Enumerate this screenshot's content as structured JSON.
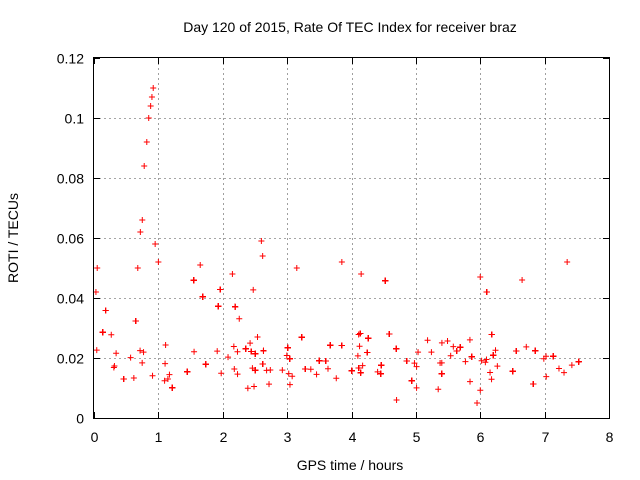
{
  "chart_data": {
    "type": "scatter",
    "title": "Day 120 of 2015, Rate Of TEC Index for receiver braz",
    "xlabel": "GPS time / hours",
    "ylabel": "ROTI / TECUs",
    "xlim": [
      0,
      8
    ],
    "ylim": [
      0,
      0.12
    ],
    "xticks": [
      0,
      1,
      2,
      3,
      4,
      5,
      6,
      7,
      8
    ],
    "xtick_labels": [
      "0",
      "1",
      "2",
      "3",
      "4",
      "5",
      "6",
      "7",
      "8"
    ],
    "yticks": [
      0,
      0.02,
      0.04,
      0.06,
      0.08,
      0.1,
      0.12
    ],
    "ytick_labels": [
      "0",
      "0.02",
      "0.04",
      "0.06",
      "0.08",
      "0.1",
      "0.12"
    ],
    "grid": true,
    "marker": "plus",
    "color": "#ff0000",
    "series": [
      {
        "name": "ROTI",
        "x_range": [
          0.0,
          7.55
        ],
        "baseline_band": [
          0.008,
          0.03
        ],
        "notable_points": [
          {
            "x": 0.78,
            "y": 0.084
          },
          {
            "x": 0.82,
            "y": 0.092
          },
          {
            "x": 0.85,
            "y": 0.1
          },
          {
            "x": 0.88,
            "y": 0.104
          },
          {
            "x": 0.9,
            "y": 0.107
          },
          {
            "x": 0.92,
            "y": 0.11
          },
          {
            "x": 0.75,
            "y": 0.066
          },
          {
            "x": 0.72,
            "y": 0.062
          },
          {
            "x": 0.68,
            "y": 0.05
          },
          {
            "x": 0.95,
            "y": 0.058
          },
          {
            "x": 1.0,
            "y": 0.052
          },
          {
            "x": 0.05,
            "y": 0.05
          },
          {
            "x": 0.03,
            "y": 0.042
          },
          {
            "x": 1.65,
            "y": 0.051
          },
          {
            "x": 2.15,
            "y": 0.048
          },
          {
            "x": 2.6,
            "y": 0.059
          },
          {
            "x": 2.62,
            "y": 0.054
          },
          {
            "x": 3.15,
            "y": 0.05
          },
          {
            "x": 3.85,
            "y": 0.052
          },
          {
            "x": 4.15,
            "y": 0.048
          },
          {
            "x": 6.0,
            "y": 0.047
          },
          {
            "x": 6.65,
            "y": 0.046
          },
          {
            "x": 7.35,
            "y": 0.052
          },
          {
            "x": 5.95,
            "y": 0.005
          },
          {
            "x": 4.7,
            "y": 0.006
          }
        ]
      }
    ]
  }
}
